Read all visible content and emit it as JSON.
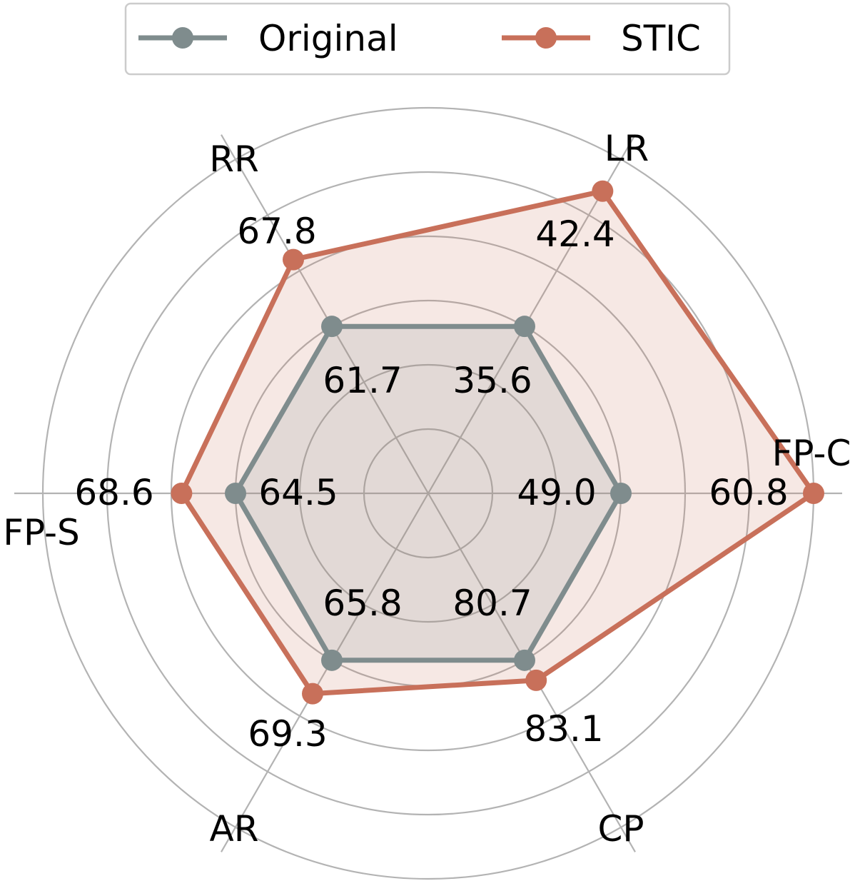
{
  "chart_data": {
    "type": "radar",
    "axes": [
      "LR",
      "RR",
      "FP-S",
      "AR",
      "CP",
      "FP-C"
    ],
    "series": [
      {
        "name": "Original",
        "values": [
          35.6,
          61.7,
          64.5,
          65.8,
          80.7,
          49.0
        ],
        "labels": [
          "35.6",
          "61.7",
          "64.5",
          "65.8",
          "80.7",
          "49.0"
        ],
        "normalized": [
          0.5,
          0.5,
          0.5,
          0.5,
          0.5,
          0.5
        ],
        "color": "#7f8c8d"
      },
      {
        "name": "STIC",
        "values": [
          42.4,
          67.8,
          68.6,
          69.3,
          83.1,
          60.8
        ],
        "labels": [
          "42.4",
          "67.8",
          "68.6",
          "69.3",
          "83.1",
          "60.8"
        ],
        "normalized": [
          0.905,
          0.7,
          0.64,
          0.6,
          0.56,
          1.0
        ],
        "color": "#c8705a"
      }
    ],
    "legend": "top-center",
    "grid": true
  }
}
